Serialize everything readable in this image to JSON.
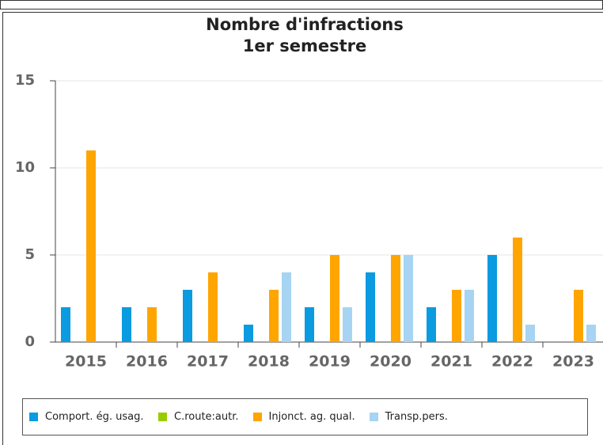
{
  "chart_data": {
    "type": "bar",
    "title": "Nombre d'infractions",
    "subtitle": "1er semestre",
    "categories": [
      "2015",
      "2016",
      "2017",
      "2018",
      "2019",
      "2020",
      "2021",
      "2022",
      "2023"
    ],
    "series": [
      {
        "name": "Comport. ég. usag.",
        "color": "#0a9be0",
        "values": [
          2,
          2,
          3,
          1,
          2,
          4,
          2,
          5,
          0
        ]
      },
      {
        "name": "C.route:autr.",
        "color": "#99cc00",
        "values": [
          0,
          0,
          0,
          0,
          0,
          0,
          0,
          0,
          0
        ]
      },
      {
        "name": "Injonct. ag. qual.",
        "color": "#ffa500",
        "values": [
          11,
          2,
          4,
          3,
          5,
          5,
          3,
          6,
          3
        ]
      },
      {
        "name": "Transp.pers.",
        "color": "#a6d4f2",
        "values": [
          0,
          0,
          0,
          4,
          2,
          5,
          3,
          1,
          1
        ]
      }
    ],
    "ylim": [
      0,
      15
    ],
    "yticks": [
      0,
      5,
      10,
      15
    ],
    "grid": true
  }
}
